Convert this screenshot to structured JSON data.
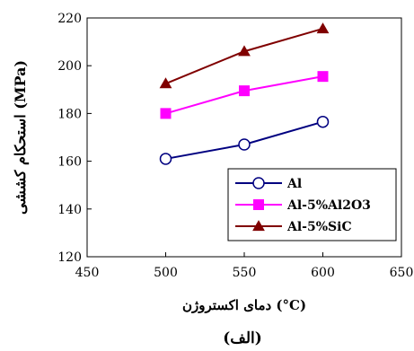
{
  "chart_data": {
    "type": "line",
    "x": [
      500,
      550,
      600
    ],
    "xlim": [
      450,
      650
    ],
    "ylim": [
      120,
      220
    ],
    "xticks": [
      "450",
      "500",
      "550",
      "600",
      "650"
    ],
    "yticks": [
      "120",
      "140",
      "160",
      "180",
      "200",
      "220"
    ],
    "xlabel": "دمای اکستروژن (°C)",
    "ylabel": "استحکام کششی (MPa)",
    "caption": "(الف)",
    "legend_position": "bottom-right",
    "grid": false,
    "series": [
      {
        "name": "Al",
        "values": [
          161,
          167,
          176.5
        ],
        "color": "#000080",
        "marker": "circle-open"
      },
      {
        "name": "Al-5%Al2O3",
        "values": [
          180,
          189.5,
          195.5
        ],
        "color": "#ff00ff",
        "marker": "square"
      },
      {
        "name": "Al-5%SiC",
        "values": [
          192.5,
          206,
          215.5
        ],
        "color": "#800000",
        "marker": "triangle"
      }
    ]
  }
}
